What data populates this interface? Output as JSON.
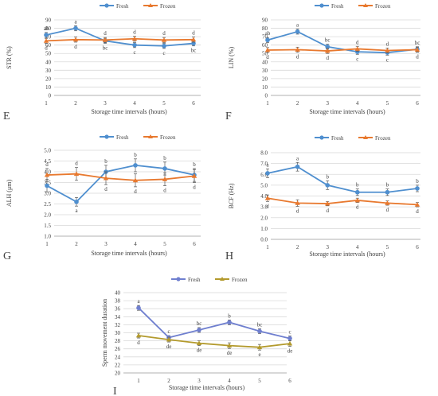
{
  "colors": {
    "fresh": "#4f8fcf",
    "frozen": "#e8792f",
    "fresh_panel_i": "#6f7fcf",
    "frozen_panel_i": "#b39a2d",
    "grid": "#d9d9d9",
    "axis": "#999999",
    "text": "#404040"
  },
  "chart_data": [
    {
      "panel": "E",
      "type": "line",
      "title": "",
      "xlabel": "Storage time intervals (hours)",
      "ylabel": "STR (%)",
      "categories": [
        "1",
        "2",
        "3",
        "4",
        "5",
        "6"
      ],
      "ylim": [
        0,
        90
      ],
      "yticks": [
        0,
        10,
        20,
        30,
        40,
        50,
        60,
        70,
        80,
        90
      ],
      "legend": "top",
      "series": [
        {
          "name": "Fresh",
          "values": [
            72,
            80,
            65,
            60,
            59,
            62
          ],
          "errors": [
            3,
            3,
            3,
            3,
            3,
            3
          ],
          "labels": [
            "ab",
            "a",
            "bc",
            "c",
            "c",
            "bc"
          ],
          "label_pos": [
            "above",
            "above",
            "below",
            "below",
            "below",
            "below"
          ]
        },
        {
          "name": "Frozen",
          "values": [
            65,
            66.5,
            66,
            67.5,
            66,
            66.5
          ],
          "errors": [
            3,
            3,
            3,
            3,
            3,
            3
          ],
          "labels": [
            "d",
            "d",
            "d",
            "d",
            "d",
            "d"
          ],
          "label_pos": [
            "below",
            "below",
            "above",
            "above",
            "above",
            "above"
          ]
        }
      ]
    },
    {
      "panel": "F",
      "type": "line",
      "title": "",
      "xlabel": "Storage time intervals (hours)",
      "ylabel": "LIN (%)",
      "categories": [
        "1",
        "2",
        "3",
        "4",
        "5",
        "6"
      ],
      "ylim": [
        0,
        90
      ],
      "yticks": [
        0,
        10,
        20,
        30,
        40,
        50,
        60,
        70,
        80,
        90
      ],
      "legend": "top",
      "series": [
        {
          "name": "Fresh",
          "values": [
            66,
            76,
            58,
            52,
            51,
            55
          ],
          "errors": [
            3,
            3,
            3,
            3,
            3,
            3
          ],
          "labels": [
            "ab",
            "a",
            "bc",
            "c",
            "c",
            "bc"
          ],
          "label_pos": [
            "above",
            "above",
            "above",
            "below",
            "below",
            "above"
          ]
        },
        {
          "name": "Frozen",
          "values": [
            54,
            54.5,
            53,
            55.5,
            53.5,
            54.5
          ],
          "errors": [
            3,
            3,
            3,
            3,
            3,
            3
          ],
          "labels": [
            "d",
            "d",
            "d",
            "d",
            "d",
            "d"
          ],
          "label_pos": [
            "below",
            "below",
            "below",
            "above",
            "above",
            "below"
          ]
        }
      ]
    },
    {
      "panel": "G",
      "type": "line",
      "title": "",
      "xlabel": "Storage time intervals (hours)",
      "ylabel": "ALH (μm)",
      "categories": [
        "1",
        "2",
        "3",
        "4",
        "5",
        "6"
      ],
      "ylim": [
        1.0,
        5.0
      ],
      "yticks": [
        1.0,
        1.5,
        2.0,
        2.5,
        3.0,
        3.5,
        4.0,
        4.5,
        5.0
      ],
      "legend": "top",
      "series": [
        {
          "name": "Fresh",
          "values": [
            3.35,
            2.6,
            4.0,
            4.3,
            4.15,
            3.85
          ],
          "errors": [
            0.3,
            0.2,
            0.3,
            0.3,
            0.3,
            0.3
          ],
          "labels": [
            "a",
            "a",
            "b",
            "b",
            "b",
            "b"
          ],
          "label_pos": [
            "above",
            "below",
            "above",
            "above",
            "above",
            "above"
          ]
        },
        {
          "name": "Frozen",
          "values": [
            3.85,
            3.9,
            3.7,
            3.6,
            3.65,
            3.8
          ],
          "errors": [
            0.3,
            0.3,
            0.3,
            0.3,
            0.3,
            0.3
          ],
          "labels": [
            "d",
            "d",
            "d",
            "d",
            "d",
            "d"
          ],
          "label_pos": [
            "above",
            "above",
            "below",
            "below",
            "below",
            "below"
          ]
        }
      ]
    },
    {
      "panel": "H",
      "type": "line",
      "title": "",
      "xlabel": "Storage time intervals (hours)",
      "ylabel": "BCF (Hz)",
      "categories": [
        "1",
        "2",
        "3",
        "4",
        "5",
        "6"
      ],
      "ylim": [
        0.0,
        8.0
      ],
      "yticks": [
        0.0,
        1.0,
        2.0,
        3.0,
        4.0,
        5.0,
        6.0,
        7.0,
        8.0
      ],
      "legend": "top",
      "series": [
        {
          "name": "Fresh",
          "values": [
            6.1,
            6.7,
            5.0,
            4.35,
            4.35,
            4.7
          ],
          "errors": [
            0.4,
            0.4,
            0.4,
            0.3,
            0.3,
            0.3
          ],
          "labels": [
            "a",
            "a",
            "b",
            "b",
            "b",
            "b"
          ],
          "label_pos": [
            "above",
            "above",
            "above",
            "above",
            "above",
            "above"
          ]
        },
        {
          "name": "Frozen",
          "values": [
            3.8,
            3.35,
            3.3,
            3.6,
            3.35,
            3.2
          ],
          "errors": [
            0.3,
            0.3,
            0.2,
            0.2,
            0.2,
            0.2
          ],
          "labels": [
            "d",
            "d",
            "d",
            "d",
            "d",
            "d"
          ],
          "label_pos": [
            "below",
            "below",
            "below",
            "below",
            "below",
            "below"
          ]
        }
      ]
    },
    {
      "panel": "I",
      "type": "line",
      "title": "",
      "xlabel": "Storage time intervals (hours)",
      "ylabel": "Sperm movement duration",
      "categories": [
        "1",
        "2",
        "3",
        "4",
        "5",
        "6"
      ],
      "ylim": [
        20,
        40
      ],
      "yticks": [
        20,
        22,
        24,
        26,
        28,
        30,
        32,
        34,
        36,
        38,
        40
      ],
      "legend": "top",
      "series": [
        {
          "name": "Fresh",
          "values": [
            36.2,
            28.8,
            30.7,
            32.6,
            30.4,
            28.6
          ],
          "errors": [
            0.6,
            0.5,
            0.6,
            0.6,
            0.6,
            0.6
          ],
          "labels": [
            "a",
            "c",
            "bc",
            "b",
            "bc",
            "c"
          ],
          "label_pos": [
            "above",
            "above",
            "above",
            "above",
            "above",
            "above"
          ]
        },
        {
          "name": "Frozen",
          "values": [
            29.3,
            28.3,
            27.4,
            26.8,
            26.4,
            27.3
          ],
          "errors": [
            0.6,
            0.6,
            0.6,
            0.7,
            0.7,
            0.7
          ],
          "labels": [
            "d",
            "de",
            "de",
            "de",
            "e",
            "de"
          ],
          "label_pos": [
            "below",
            "below",
            "below",
            "below",
            "below",
            "below"
          ]
        }
      ]
    }
  ]
}
